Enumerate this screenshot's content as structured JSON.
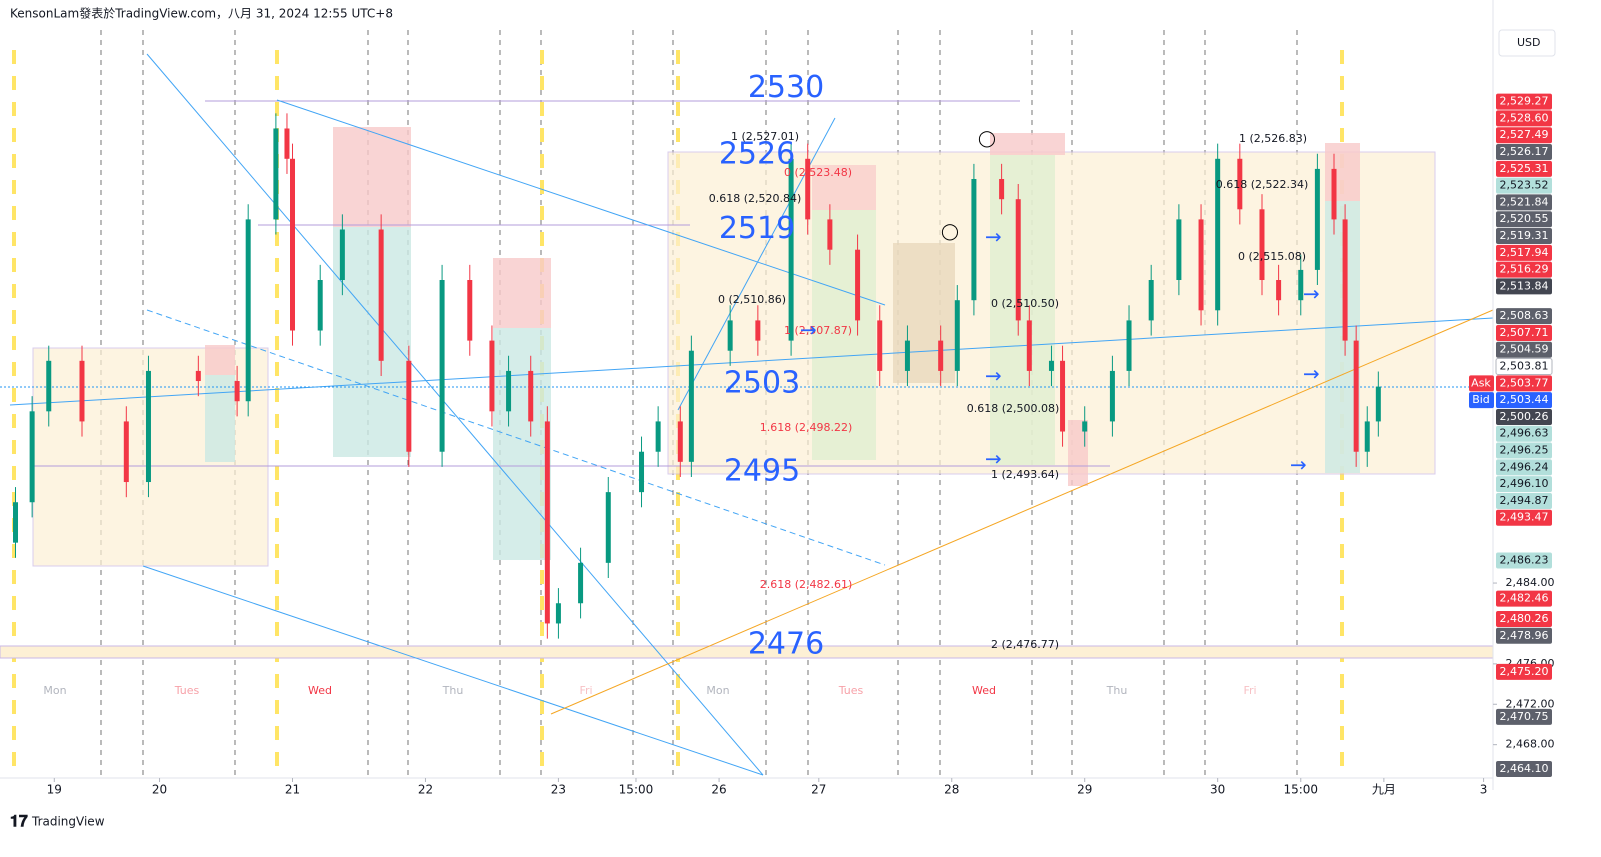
{
  "header": "KensonLam發表於TradingView.com，八月 31, 2024 12:55 UTC+8",
  "footer": "TradingView",
  "currency": "USD",
  "chart_data": {
    "type": "candlestick",
    "xlim": [
      -1.8,
      267.7
    ],
    "ylim": [
      2464.7,
      2538.75
    ],
    "xticks": [
      {
        "value": 8,
        "label": "19"
      },
      {
        "value": 27,
        "label": "20"
      },
      {
        "value": 51,
        "label": "21"
      },
      {
        "value": 75,
        "label": "22"
      },
      {
        "value": 99,
        "label": "23"
      },
      {
        "value": 113,
        "label": "15:00"
      },
      {
        "value": 128,
        "label": "26"
      },
      {
        "value": 146,
        "label": "27"
      },
      {
        "value": 170,
        "label": "28"
      },
      {
        "value": 194,
        "label": "29"
      },
      {
        "value": 218,
        "label": "30"
      },
      {
        "value": 233,
        "label": "15:00"
      },
      {
        "value": 248,
        "label": "九月"
      },
      {
        "value": 266,
        "label": "3"
      }
    ],
    "yticks": [
      {
        "value": 2484,
        "label": "2,484.00"
      },
      {
        "value": 2476,
        "label": "2,476.00"
      },
      {
        "value": 2472,
        "label": "2,472.00"
      },
      {
        "value": 2468,
        "label": "2,468.00"
      }
    ],
    "up_color": "#089981",
    "down_color": "#f23645",
    "series": [
      {
        "x": [
          1,
          4,
          7,
          13,
          21,
          25,
          34,
          41,
          43,
          48,
          50,
          51,
          56,
          60,
          67,
          72,
          78,
          83,
          87,
          90,
          94,
          97,
          99,
          103,
          108,
          114,
          117,
          121,
          123,
          130,
          135,
          141,
          144,
          148,
          153,
          157,
          162,
          168,
          171,
          174,
          179,
          182,
          184,
          188,
          190,
          194,
          199,
          202,
          206,
          211,
          215,
          218,
          222,
          226,
          229,
          233,
          236,
          239,
          241,
          243,
          245,
          247
        ],
        "open": [
          2488,
          2492,
          2501,
          2506,
          2500,
          2494,
          2505,
          2504,
          2502,
          2520,
          2529,
          2526,
          2509,
          2514,
          2519,
          2506,
          2497,
          2514,
          2508,
          2501,
          2505,
          2500,
          2480,
          2482,
          2486,
          2493,
          2497,
          2500,
          2496,
          2507,
          2510,
          2508,
          2526,
          2520,
          2517,
          2510,
          2505,
          2508,
          2505,
          2512,
          2524,
          2522,
          2510,
          2505,
          2506,
          2499,
          2500,
          2505,
          2510,
          2514,
          2520,
          2511,
          2526,
          2521,
          2514,
          2512,
          2515,
          2525,
          2520,
          2508,
          2497,
          2500
        ],
        "high": [
          2493.5,
          2502.5,
          2507.5,
          2507.5,
          2501.5,
          2506.5,
          2506.5,
          2505.5,
          2521.5,
          2530.5,
          2530.5,
          2527.5,
          2515.5,
          2520.5,
          2520.5,
          2507.5,
          2515.5,
          2515.5,
          2509.5,
          2506.5,
          2506.5,
          2501.5,
          2483.5,
          2487.5,
          2494.5,
          2498.5,
          2501.5,
          2501.5,
          2508.5,
          2511.5,
          2511.5,
          2527.5,
          2527.5,
          2521.5,
          2518.5,
          2511.5,
          2509.5,
          2509.5,
          2513.5,
          2525.5,
          2525.5,
          2523.5,
          2511.5,
          2507.5,
          2507.5,
          2501.5,
          2506.5,
          2511.5,
          2515.5,
          2521.5,
          2521.5,
          2527.5,
          2527.5,
          2522.5,
          2515.5,
          2516.5,
          2526.5,
          2526.5,
          2521.5,
          2509.5,
          2501.5,
          2504.94
        ],
        "low": [
          2486.5,
          2490.5,
          2499.5,
          2498.5,
          2492.5,
          2492.5,
          2502.5,
          2500.5,
          2500.5,
          2518.5,
          2524.5,
          2507.5,
          2507.5,
          2512.5,
          2504.5,
          2495.5,
          2495.5,
          2506.5,
          2499.5,
          2499.5,
          2498.5,
          2478.5,
          2478.5,
          2480.5,
          2484.5,
          2491.5,
          2495.5,
          2494.5,
          2494.5,
          2505.5,
          2506.5,
          2506.5,
          2518.5,
          2515.5,
          2508.5,
          2503.5,
          2503.5,
          2503.5,
          2503.5,
          2510.5,
          2520.5,
          2508.5,
          2503.5,
          2503.5,
          2497.5,
          2497.5,
          2498.5,
          2503.5,
          2508.5,
          2512.5,
          2509.5,
          2509.5,
          2519.5,
          2512.5,
          2510.5,
          2510.5,
          2513.5,
          2518.5,
          2506.5,
          2495.5,
          2495.5,
          2498.5
        ],
        "close": [
          2492,
          2501,
          2506,
          2500,
          2494,
          2505,
          2504,
          2502,
          2520,
          2529,
          2526,
          2509,
          2514,
          2519,
          2506,
          2497,
          2514,
          2508,
          2501,
          2505,
          2500,
          2480,
          2482,
          2486,
          2493,
          2497,
          2500,
          2496,
          2507,
          2510,
          2508,
          2526,
          2520,
          2517,
          2510,
          2505,
          2508,
          2505,
          2512,
          2524,
          2522,
          2510,
          2505,
          2506,
          2499,
          2500,
          2505,
          2510,
          2514,
          2520,
          2511,
          2526,
          2521,
          2514,
          2512,
          2515,
          2525,
          2520,
          2508,
          2497,
          2500,
          2503.44
        ]
      }
    ],
    "levels": [
      2530,
      2526,
      2519,
      2503,
      2495,
      2476
    ],
    "fib_labels": [
      "1 (2,527.01)",
      "0 (2,523.48)",
      "0.618 (2,520.84)",
      "0 (2,510.86)",
      "1 (2,507.87)",
      "1.618 (2,498.22)",
      "2.618 (2,482.61)",
      "0 (2,510.50)",
      "0.618 (2,500.08)",
      "1 (2,493.64)",
      "2 (2,476.77)",
      "1 (2,526.83)",
      "0.618 (2,522.34)",
      "0 (2,515.08)"
    ],
    "day_labels": [
      "Mon",
      "Tues",
      "Wed",
      "Thu",
      "Fri",
      "Mon",
      "Tues",
      "Wed",
      "Thu",
      "Fri"
    ],
    "price_labels": [
      {
        "value": 2529.27,
        "label": "2,529.27",
        "color": "#f23645"
      },
      {
        "value": 2528.6,
        "label": "2,528.60",
        "color": "#f23645"
      },
      {
        "value": 2527.49,
        "label": "2,527.49",
        "color": "#f23645"
      },
      {
        "value": 2526.17,
        "label": "2,526.17",
        "color": "#5d606b"
      },
      {
        "value": 2525.31,
        "label": "2,525.31",
        "color": "#f23645"
      },
      {
        "value": 2523.52,
        "label": "2,523.52",
        "color": "#b2dfdb"
      },
      {
        "value": 2521.84,
        "label": "2,521.84",
        "color": "#5d606b"
      },
      {
        "value": 2520.55,
        "label": "2,520.55",
        "color": "#5d606b"
      },
      {
        "value": 2519.31,
        "label": "2,519.31",
        "color": "#5d606b"
      },
      {
        "value": 2517.94,
        "label": "2,517.94",
        "color": "#f23645"
      },
      {
        "value": 2516.29,
        "label": "2,516.29",
        "color": "#f23645"
      },
      {
        "value": 2513.84,
        "label": "2,513.84",
        "color": "#434651"
      },
      {
        "value": 2508.63,
        "label": "2,508.63",
        "color": "#5d606b"
      },
      {
        "value": 2507.71,
        "label": "2,507.71",
        "color": "#f23645"
      },
      {
        "value": 2504.59,
        "label": "2,504.59",
        "color": "#5d606b"
      },
      {
        "value": 2503.81,
        "label": "2,503.81",
        "color": "#ffffff"
      },
      {
        "value": 2503.77,
        "label": "2,503.77",
        "color": "#f23645",
        "tag": "Ask"
      },
      {
        "value": 2503.44,
        "label": "2,503.44",
        "color": "#2962ff",
        "tag": "Bid"
      },
      {
        "value": 2500.26,
        "label": "2,500.26",
        "color": "#434651"
      },
      {
        "value": 2496.63,
        "label": "2,496.63",
        "color": "#b2dfdb"
      },
      {
        "value": 2496.25,
        "label": "2,496.25",
        "color": "#b2dfdb"
      },
      {
        "value": 2496.24,
        "label": "2,496.24",
        "color": "#b2dfdb"
      },
      {
        "value": 2496.1,
        "label": "2,496.10",
        "color": "#b2dfdb"
      },
      {
        "value": 2494.87,
        "label": "2,494.87",
        "color": "#b2dfdb"
      },
      {
        "value": 2493.47,
        "label": "2,493.47",
        "color": "#f23645"
      },
      {
        "value": 2486.23,
        "label": "2,486.23",
        "color": "#b2dfdb"
      },
      {
        "value": 2482.46,
        "label": "2,482.46",
        "color": "#f23645"
      },
      {
        "value": 2480.26,
        "label": "2,480.26",
        "color": "#f23645"
      },
      {
        "value": 2478.96,
        "label": "2,478.96",
        "color": "#5d606b"
      },
      {
        "value": 2475.2,
        "label": "2,475.20",
        "color": "#f23645"
      },
      {
        "value": 2470.75,
        "label": "2,470.75",
        "color": "#5d606b"
      },
      {
        "value": 2464.1,
        "label": "2,464.10",
        "color": "#5d606b"
      }
    ]
  }
}
